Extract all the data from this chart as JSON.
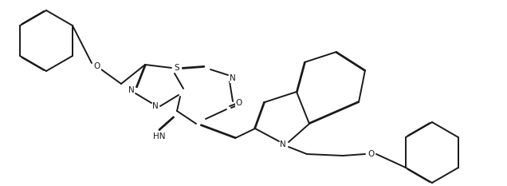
{
  "bg_color": "#ffffff",
  "line_color": "#1a1a1a",
  "line_width": 1.4,
  "dbo": 0.008,
  "figsize": [
    6.36,
    2.33
  ],
  "dpi": 100,
  "xlim": [
    0,
    6.36
  ],
  "ylim": [
    0,
    2.33
  ]
}
